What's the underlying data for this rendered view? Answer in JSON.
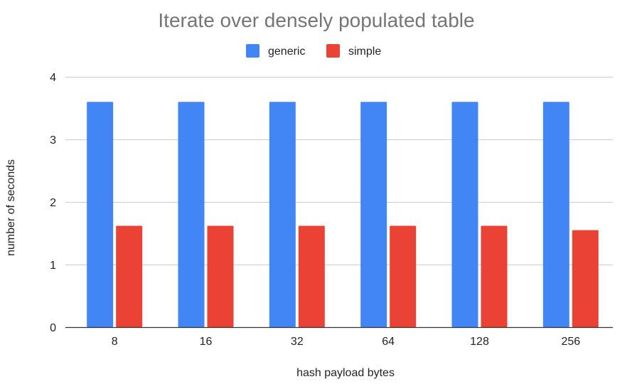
{
  "chart_data": {
    "type": "bar",
    "title": "Iterate over densely populated table",
    "xlabel": "hash payload bytes",
    "ylabel": "number of seconds",
    "categories": [
      "8",
      "16",
      "32",
      "64",
      "128",
      "256"
    ],
    "series": [
      {
        "name": "generic",
        "color": "#4285f4",
        "values": [
          3.6,
          3.6,
          3.6,
          3.6,
          3.6,
          3.6
        ]
      },
      {
        "name": "simple",
        "color": "#ea4335",
        "values": [
          1.62,
          1.62,
          1.62,
          1.62,
          1.62,
          1.55
        ]
      }
    ],
    "ylim": [
      0,
      4
    ],
    "yticks": [
      "0",
      "1",
      "2",
      "3",
      "4"
    ],
    "grid": true,
    "legend_position": "top"
  }
}
